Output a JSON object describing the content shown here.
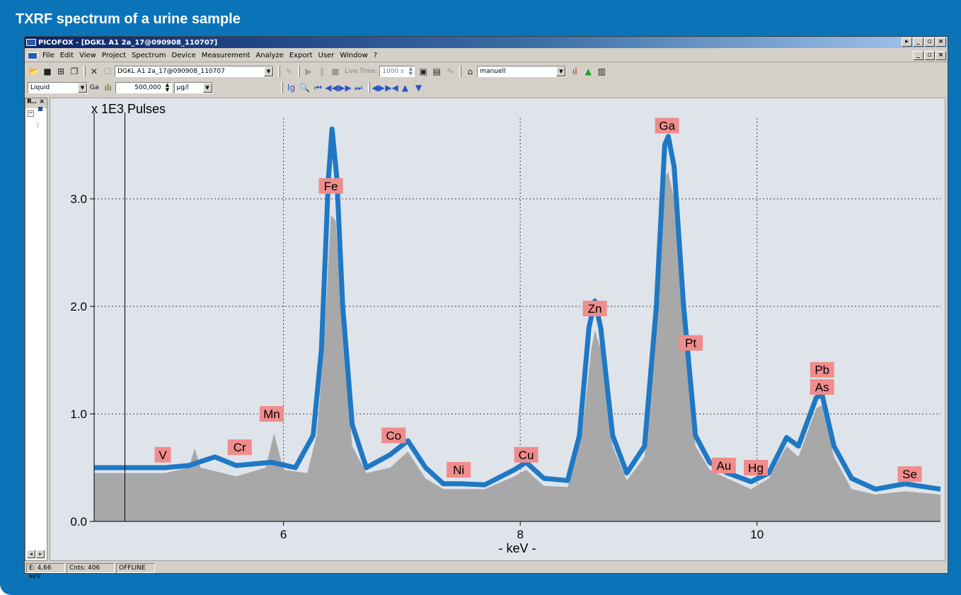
{
  "frame_title": "TXRF spectrum of a urine sample",
  "window": {
    "title": "PICOFOX - [DGKL A1 2a_17@090908_110707]"
  },
  "menu": [
    "File",
    "Edit",
    "View",
    "Project",
    "Spectrum",
    "Device",
    "Measurement",
    "Analyze",
    "Export",
    "User",
    "Window",
    "?"
  ],
  "toolbar1": {
    "spectrum_select": "DGKL A1 2a_17@090908_110707",
    "live_time_label": "Live Time:",
    "live_time_value": "1000 s",
    "method_select": "manuell"
  },
  "toolbar2": {
    "sample_type": "Liquid",
    "internal_standard": "Ga",
    "concentration": "500,000",
    "unit": "µg/l"
  },
  "side_panel": {
    "title": "R..",
    "close": "×"
  },
  "status": {
    "energy": "E: 4,66 keV",
    "counts": "Cnts: 406",
    "mode": "OFFLINE"
  },
  "colors": {
    "frame_blue": "#0b73b7",
    "measured_blue": "#1f78c4",
    "fit_gray": "#a8a8a8",
    "label_bg": "#f08c8c",
    "plot_bg": "#dee4ea"
  },
  "chart_data": {
    "type": "area",
    "y_unit_label": "x 1E3 Pulses",
    "xlabel": "- keV -",
    "xlim": [
      4.4,
      11.55
    ],
    "ylim": [
      0,
      3.75
    ],
    "x_ticks": [
      6,
      8,
      10
    ],
    "y_ticks": [
      0.0,
      1.0,
      2.0,
      3.0
    ],
    "y_tick_labels": [
      "0.0",
      "1.0",
      "2.0",
      "3.0"
    ],
    "x_tick_labels": [
      "6",
      "8",
      "10"
    ],
    "cursor_x": 4.66,
    "grid": true,
    "series": [
      {
        "name": "",
        "role": "measured",
        "points": [
          [
            4.4,
            0.5
          ],
          [
            5.0,
            0.5
          ],
          [
            5.2,
            0.52
          ],
          [
            5.42,
            0.6
          ],
          [
            5.6,
            0.52
          ],
          [
            5.9,
            0.55
          ],
          [
            6.1,
            0.5
          ],
          [
            6.25,
            0.8
          ],
          [
            6.32,
            1.6
          ],
          [
            6.38,
            3.2
          ],
          [
            6.41,
            3.65
          ],
          [
            6.45,
            3.2
          ],
          [
            6.5,
            2.0
          ],
          [
            6.58,
            0.9
          ],
          [
            6.7,
            0.5
          ],
          [
            6.9,
            0.62
          ],
          [
            7.05,
            0.75
          ],
          [
            7.2,
            0.5
          ],
          [
            7.35,
            0.35
          ],
          [
            7.5,
            0.35
          ],
          [
            7.7,
            0.34
          ],
          [
            7.95,
            0.48
          ],
          [
            8.05,
            0.55
          ],
          [
            8.2,
            0.4
          ],
          [
            8.4,
            0.38
          ],
          [
            8.5,
            0.8
          ],
          [
            8.58,
            1.8
          ],
          [
            8.63,
            2.05
          ],
          [
            8.68,
            1.8
          ],
          [
            8.78,
            0.8
          ],
          [
            8.9,
            0.45
          ],
          [
            9.05,
            0.7
          ],
          [
            9.15,
            2.0
          ],
          [
            9.22,
            3.5
          ],
          [
            9.25,
            3.58
          ],
          [
            9.3,
            3.3
          ],
          [
            9.38,
            2.0
          ],
          [
            9.48,
            0.8
          ],
          [
            9.6,
            0.55
          ],
          [
            9.75,
            0.45
          ],
          [
            9.95,
            0.37
          ],
          [
            10.1,
            0.45
          ],
          [
            10.25,
            0.78
          ],
          [
            10.35,
            0.7
          ],
          [
            10.5,
            1.15
          ],
          [
            10.55,
            1.18
          ],
          [
            10.65,
            0.7
          ],
          [
            10.8,
            0.4
          ],
          [
            11.0,
            0.3
          ],
          [
            11.25,
            0.35
          ],
          [
            11.55,
            0.3
          ]
        ]
      },
      {
        "name": "",
        "role": "fit",
        "points": [
          [
            4.4,
            0.45
          ],
          [
            5.0,
            0.45
          ],
          [
            5.2,
            0.5
          ],
          [
            5.25,
            0.68
          ],
          [
            5.3,
            0.5
          ],
          [
            5.6,
            0.42
          ],
          [
            5.85,
            0.5
          ],
          [
            5.92,
            0.82
          ],
          [
            6.0,
            0.48
          ],
          [
            6.2,
            0.45
          ],
          [
            6.28,
            0.8
          ],
          [
            6.34,
            1.6
          ],
          [
            6.4,
            2.85
          ],
          [
            6.44,
            2.8
          ],
          [
            6.5,
            1.8
          ],
          [
            6.58,
            0.7
          ],
          [
            6.7,
            0.45
          ],
          [
            6.9,
            0.5
          ],
          [
            7.05,
            0.65
          ],
          [
            7.2,
            0.4
          ],
          [
            7.35,
            0.3
          ],
          [
            7.7,
            0.3
          ],
          [
            7.95,
            0.42
          ],
          [
            8.05,
            0.48
          ],
          [
            8.2,
            0.33
          ],
          [
            8.4,
            0.32
          ],
          [
            8.52,
            0.8
          ],
          [
            8.6,
            1.6
          ],
          [
            8.63,
            1.78
          ],
          [
            8.68,
            1.6
          ],
          [
            8.78,
            0.7
          ],
          [
            8.9,
            0.38
          ],
          [
            9.05,
            0.6
          ],
          [
            9.15,
            1.8
          ],
          [
            9.22,
            3.2
          ],
          [
            9.25,
            3.25
          ],
          [
            9.3,
            3.0
          ],
          [
            9.38,
            1.8
          ],
          [
            9.48,
            0.7
          ],
          [
            9.6,
            0.48
          ],
          [
            9.75,
            0.4
          ],
          [
            9.95,
            0.3
          ],
          [
            10.1,
            0.4
          ],
          [
            10.25,
            0.7
          ],
          [
            10.35,
            0.6
          ],
          [
            10.5,
            1.05
          ],
          [
            10.55,
            1.08
          ],
          [
            10.65,
            0.6
          ],
          [
            10.8,
            0.3
          ],
          [
            11.0,
            0.25
          ],
          [
            11.25,
            0.28
          ],
          [
            11.55,
            0.25
          ]
        ]
      }
    ],
    "peak_labels": [
      {
        "text": "V",
        "x": 4.98,
        "y": 0.62
      },
      {
        "text": "Cr",
        "x": 5.63,
        "y": 0.69
      },
      {
        "text": "Mn",
        "x": 5.9,
        "y": 1.0
      },
      {
        "text": "Fe",
        "x": 6.4,
        "y": 3.12
      },
      {
        "text": "Co",
        "x": 6.93,
        "y": 0.8
      },
      {
        "text": "Ni",
        "x": 7.48,
        "y": 0.48
      },
      {
        "text": "Cu",
        "x": 8.05,
        "y": 0.62
      },
      {
        "text": "Zn",
        "x": 8.63,
        "y": 1.98
      },
      {
        "text": "Ga",
        "x": 9.24,
        "y": 3.68
      },
      {
        "text": "Pt",
        "x": 9.44,
        "y": 1.66
      },
      {
        "text": "Au",
        "x": 9.72,
        "y": 0.52
      },
      {
        "text": "Hg",
        "x": 9.99,
        "y": 0.5
      },
      {
        "text": "Pb",
        "x": 10.55,
        "y": 1.41
      },
      {
        "text": "As",
        "x": 10.55,
        "y": 1.25
      },
      {
        "text": "Se",
        "x": 11.29,
        "y": 0.44
      }
    ]
  }
}
